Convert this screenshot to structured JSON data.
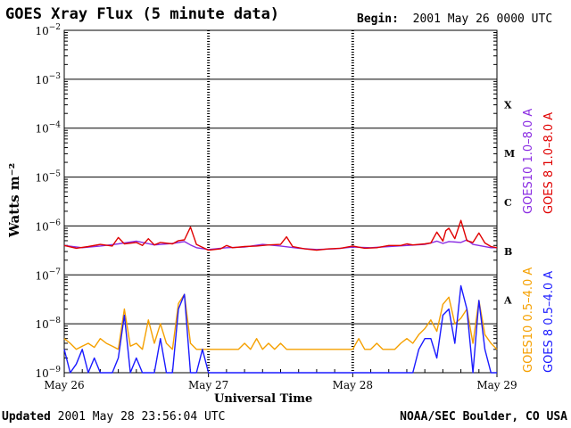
{
  "header": {
    "title": "GOES Xray Flux (5 minute data)",
    "begin_label": "Begin:",
    "begin_value": "2001 May 26 0000 UTC"
  },
  "footer": {
    "updated_label": "Updated",
    "updated_value": "2001 May 28 23:56:04 UTC",
    "source": "NOAA/SEC Boulder, CO USA"
  },
  "colors": {
    "goes10_long": "#8a2be2",
    "goes8_long": "#e00000",
    "goes10_short": "#f5a000",
    "goes8_short": "#1a1aff"
  },
  "chart_data": {
    "type": "line",
    "title": "GOES Xray Flux (5 minute data)",
    "xlabel": "Universal Time",
    "ylabel": "Watts m⁻²",
    "y_scale": "log",
    "ylim": [
      1e-09,
      0.01
    ],
    "xlim": [
      "2001-05-26 00:00",
      "2001-05-29 00:00"
    ],
    "x_ticks": [
      "May 26",
      "May 27",
      "May 28",
      "May 29"
    ],
    "y_ticks": [
      {
        "base": "10",
        "exp": "−2"
      },
      {
        "base": "10",
        "exp": "−3"
      },
      {
        "base": "10",
        "exp": "−4"
      },
      {
        "base": "10",
        "exp": "−5"
      },
      {
        "base": "10",
        "exp": "−6"
      },
      {
        "base": "10",
        "exp": "−7"
      },
      {
        "base": "10",
        "exp": "−8"
      },
      {
        "base": "10",
        "exp": "−9"
      }
    ],
    "flare_classes": [
      "X",
      "M",
      "C",
      "B",
      "A"
    ],
    "grid": true,
    "legend_placement": "right",
    "series": [
      {
        "name": "GOES10 1.0–8.0 A",
        "color": "#8a2be2",
        "x_hours": [
          0,
          3,
          6,
          9,
          12,
          15,
          18,
          20,
          21,
          22,
          24,
          27,
          30,
          33,
          36,
          39,
          42,
          45,
          48,
          51,
          54,
          57,
          60,
          61,
          62,
          63,
          64,
          66,
          67,
          68,
          69,
          71,
          72
        ],
        "values": [
          4e-07,
          3.6e-07,
          3.9e-07,
          4.3e-07,
          4.9e-07,
          4.1e-07,
          4.4e-07,
          4.8e-07,
          4.1e-07,
          3.6e-07,
          3.3e-07,
          3.6e-07,
          3.7e-07,
          4.2e-07,
          3.9e-07,
          3.5e-07,
          3.3e-07,
          3.4e-07,
          3.7e-07,
          3.6e-07,
          3.8e-07,
          4e-07,
          4.2e-07,
          4.5e-07,
          4.9e-07,
          4.4e-07,
          4.8e-07,
          4.6e-07,
          5.2e-07,
          4.2e-07,
          4e-07,
          3.6e-07,
          3.6e-07
        ]
      },
      {
        "name": "GOES 8 1.0–8.0 A",
        "color": "#e00000",
        "x_hours": [
          0,
          2,
          4,
          6,
          8,
          9,
          10,
          12,
          13,
          14,
          15,
          16,
          18,
          19,
          20,
          21,
          22,
          24,
          26,
          27,
          28,
          30,
          32,
          34,
          36,
          37,
          38,
          40,
          42,
          44,
          46,
          48,
          50,
          52,
          54,
          56,
          57,
          58,
          60,
          61,
          62,
          63,
          63.5,
          64,
          65,
          66,
          67,
          68,
          69,
          70,
          71,
          72
        ],
        "values": [
          4e-07,
          3.5e-07,
          3.8e-07,
          4.2e-07,
          3.9e-07,
          5.8e-07,
          4.3e-07,
          4.6e-07,
          4e-07,
          5.5e-07,
          4.1e-07,
          4.6e-07,
          4.3e-07,
          5e-07,
          5.2e-07,
          9.5e-07,
          4.2e-07,
          3.2e-07,
          3.4e-07,
          4e-07,
          3.6e-07,
          3.8e-07,
          3.9e-07,
          4.1e-07,
          4.2e-07,
          6e-07,
          3.8e-07,
          3.4e-07,
          3.2e-07,
          3.4e-07,
          3.5e-07,
          3.9e-07,
          3.5e-07,
          3.6e-07,
          4e-07,
          4e-07,
          4.3e-07,
          4.1e-07,
          4.3e-07,
          4.5e-07,
          7.5e-07,
          4.9e-07,
          8e-07,
          9e-07,
          5.5e-07,
          1.3e-06,
          5e-07,
          4.6e-07,
          7.2e-07,
          4.5e-07,
          3.8e-07,
          3.6e-07
        ]
      },
      {
        "name": "GOES10 0.5–4.0 A",
        "color": "#f5a000",
        "x_hours": [
          0,
          1,
          2,
          3,
          4,
          5,
          6,
          7,
          8,
          9,
          10,
          11,
          12,
          13,
          14,
          15,
          16,
          17,
          18,
          19,
          20,
          21,
          22,
          23,
          24,
          25,
          26,
          27,
          28,
          29,
          30,
          31,
          32,
          33,
          34,
          35,
          36,
          37,
          38,
          39,
          40,
          41,
          42,
          43,
          44,
          45,
          46,
          47,
          48,
          49,
          50,
          51,
          52,
          53,
          54,
          55,
          56,
          57,
          58,
          59,
          60,
          61,
          62,
          63,
          64,
          65,
          66,
          67,
          68,
          69,
          70,
          71,
          72
        ],
        "values": [
          5e-09,
          4e-09,
          3e-09,
          3.5e-09,
          4e-09,
          3.3e-09,
          5e-09,
          4e-09,
          3.5e-09,
          3e-09,
          2e-08,
          3.5e-09,
          4e-09,
          3e-09,
          1.2e-08,
          4e-09,
          1e-08,
          4e-09,
          3e-09,
          2.6e-08,
          4e-08,
          4e-09,
          3e-09,
          3e-09,
          3e-09,
          3e-09,
          3e-09,
          3e-09,
          3e-09,
          3e-09,
          4e-09,
          3e-09,
          5e-09,
          3e-09,
          4e-09,
          3e-09,
          4e-09,
          3e-09,
          3e-09,
          3e-09,
          3e-09,
          3e-09,
          3e-09,
          3e-09,
          3e-09,
          3e-09,
          3e-09,
          3e-09,
          3e-09,
          5e-09,
          3e-09,
          3e-09,
          4e-09,
          3e-09,
          3e-09,
          3e-09,
          4e-09,
          5e-09,
          4e-09,
          6e-09,
          8e-09,
          1.2e-08,
          7e-09,
          2.5e-08,
          3.5e-08,
          1e-08,
          1.3e-08,
          2e-08,
          4e-09,
          3e-08,
          6e-09,
          4e-09,
          3e-09
        ]
      },
      {
        "name": "GOES 8 0.5–4.0 A",
        "color": "#1a1aff",
        "x_hours": [
          0,
          1,
          2,
          3,
          4,
          5,
          6,
          7,
          8,
          9,
          10,
          11,
          12,
          13,
          14,
          15,
          16,
          17,
          18,
          19,
          20,
          21,
          22,
          23,
          24,
          25,
          26,
          27,
          28,
          29,
          30,
          31,
          32,
          33,
          34,
          35,
          36,
          37,
          38,
          39,
          40,
          41,
          42,
          43,
          44,
          45,
          46,
          47,
          48,
          49,
          50,
          51,
          52,
          53,
          54,
          55,
          56,
          57,
          58,
          59,
          60,
          61,
          62,
          63,
          64,
          65,
          66,
          67,
          68,
          69,
          70,
          71,
          72
        ],
        "values": [
          3e-09,
          1e-09,
          1.5e-09,
          3e-09,
          1e-09,
          2e-09,
          1e-09,
          1e-09,
          1e-09,
          2e-09,
          1.5e-08,
          1e-09,
          2e-09,
          1e-09,
          1e-09,
          1e-09,
          5e-09,
          1e-09,
          1e-09,
          2e-08,
          4e-08,
          1e-09,
          1e-09,
          3e-09,
          1e-09,
          1e-09,
          1e-09,
          1e-09,
          1e-09,
          1e-09,
          1e-09,
          1e-09,
          1e-09,
          1e-09,
          1e-09,
          1e-09,
          1e-09,
          1e-09,
          1e-09,
          1e-09,
          1e-09,
          1e-09,
          1e-09,
          1e-09,
          1e-09,
          1e-09,
          1e-09,
          1e-09,
          1e-09,
          1e-09,
          1e-09,
          1e-09,
          1e-09,
          1e-09,
          1e-09,
          1e-09,
          1e-09,
          1e-09,
          1e-09,
          3e-09,
          5e-09,
          5e-09,
          2e-09,
          1.5e-08,
          2e-08,
          4e-09,
          6e-08,
          2e-08,
          1e-09,
          3e-08,
          3e-09,
          1e-09,
          1e-09
        ]
      }
    ]
  }
}
